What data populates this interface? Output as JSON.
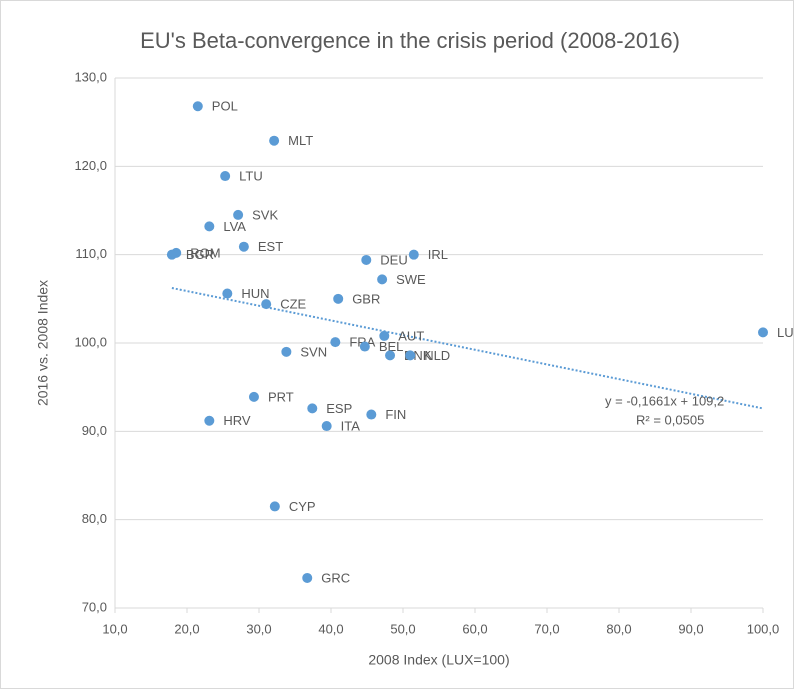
{
  "chart_data": {
    "type": "scatter",
    "title": "EU's Beta-convergence in the crisis period (2008-2016)",
    "x_label": "2008 Index (LUX=100)",
    "y_label": "2016 vs. 2008 Index",
    "color": "#5b9bd5",
    "labels": [
      "POL",
      "MLT",
      "LTU",
      "SVK",
      "LVA",
      "EST",
      "ROM",
      "BGR",
      "IRL",
      "DEU",
      "SWE",
      "HUN",
      "GBR",
      "CZE",
      "AUT",
      "LUX",
      "FRA",
      "BEL",
      "DNK",
      "NLD",
      "SVN",
      "PRT",
      "ESP",
      "FIN",
      "HRV",
      "ITA",
      "CYP",
      "GRC"
    ],
    "x": [
      21.5,
      32.1,
      25.3,
      27.1,
      23.1,
      27.9,
      18.5,
      17.9,
      51.5,
      44.9,
      47.1,
      25.6,
      41.0,
      31.0,
      47.4,
      100,
      40.6,
      44.7,
      48.2,
      51.0,
      33.8,
      29.3,
      37.4,
      45.6,
      23.1,
      39.4,
      32.2,
      36.7
    ],
    "values": [
      126.8,
      122.9,
      118.9,
      114.5,
      113.2,
      110.9,
      110.2,
      110.0,
      110.0,
      109.4,
      107.2,
      105.6,
      105.0,
      104.4,
      100.8,
      101.2,
      100.1,
      99.6,
      98.6,
      98.6,
      99.0,
      93.9,
      92.6,
      91.9,
      91.2,
      90.6,
      81.5,
      73.4
    ],
    "xlim": [
      10,
      100
    ],
    "xticks": [
      {
        "value": 10,
        "label": "10,0"
      },
      {
        "value": 20,
        "label": "20,0"
      },
      {
        "value": 30,
        "label": "30,0"
      },
      {
        "value": 40,
        "label": "40,0"
      },
      {
        "value": 50,
        "label": "50,0"
      },
      {
        "value": 60,
        "label": "60,0"
      },
      {
        "value": 70,
        "label": "70,0"
      },
      {
        "value": 80,
        "label": "80,0"
      },
      {
        "value": 90,
        "label": "90,0"
      },
      {
        "value": 100,
        "label": "100,0"
      }
    ],
    "ylim": [
      70,
      130
    ],
    "yticks": [
      {
        "value": 70,
        "label": "70,0"
      },
      {
        "value": 80,
        "label": "80,0"
      },
      {
        "value": 90,
        "label": "90,0"
      },
      {
        "value": 100,
        "label": "100,0"
      },
      {
        "value": 110,
        "label": "110,0"
      },
      {
        "value": 120,
        "label": "120,0"
      },
      {
        "value": 130,
        "label": "130,0"
      }
    ],
    "grid": true,
    "trendline": {
      "slope": -0.1661,
      "intercept": 109.2,
      "equation": "y = -0,1661x + 109,2",
      "r2": "R² = 0,0505"
    }
  }
}
